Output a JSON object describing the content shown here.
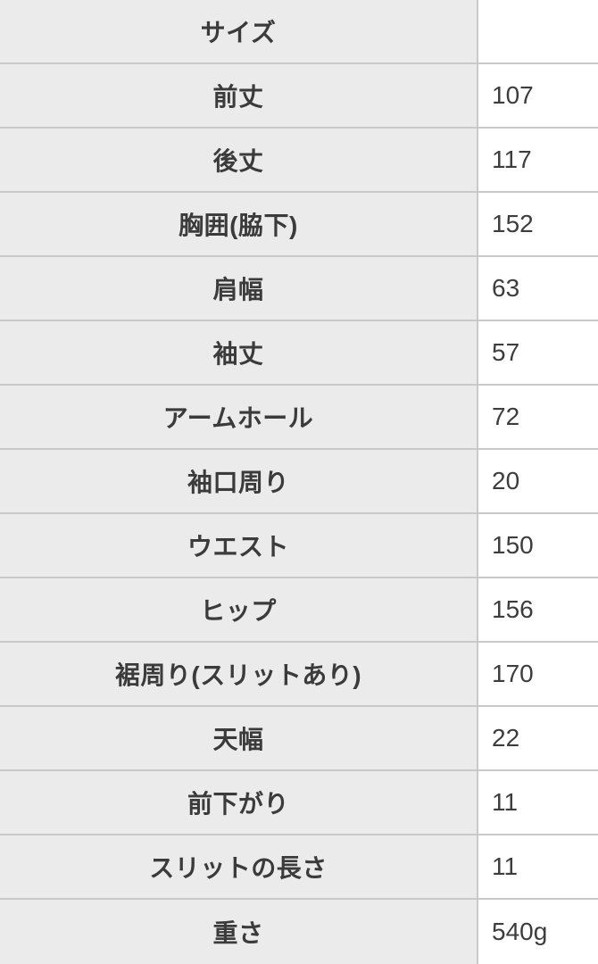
{
  "table": {
    "title": "サイズ",
    "colors": {
      "label_bg": "#ebebeb",
      "value_bg": "#ffffff",
      "border": "#c9c9c9",
      "label_text": "#3b3b3b",
      "value_text": "#3d3d3d"
    },
    "rows": [
      {
        "label": "サイズ",
        "value": ""
      },
      {
        "label": "前丈",
        "value": "107"
      },
      {
        "label": "後丈",
        "value": "117"
      },
      {
        "label": "胸囲(脇下)",
        "value": "152"
      },
      {
        "label": "肩幅",
        "value": "63"
      },
      {
        "label": "袖丈",
        "value": "57"
      },
      {
        "label": "アームホール",
        "value": "72"
      },
      {
        "label": "袖口周り",
        "value": "20"
      },
      {
        "label": "ウエスト",
        "value": "150"
      },
      {
        "label": "ヒップ",
        "value": "156"
      },
      {
        "label": "裾周り(スリットあり)",
        "value": "170"
      },
      {
        "label": "天幅",
        "value": "22"
      },
      {
        "label": "前下がり",
        "value": "11"
      },
      {
        "label": "スリットの長さ",
        "value": "11"
      },
      {
        "label": "重さ",
        "value": "540g"
      }
    ]
  }
}
